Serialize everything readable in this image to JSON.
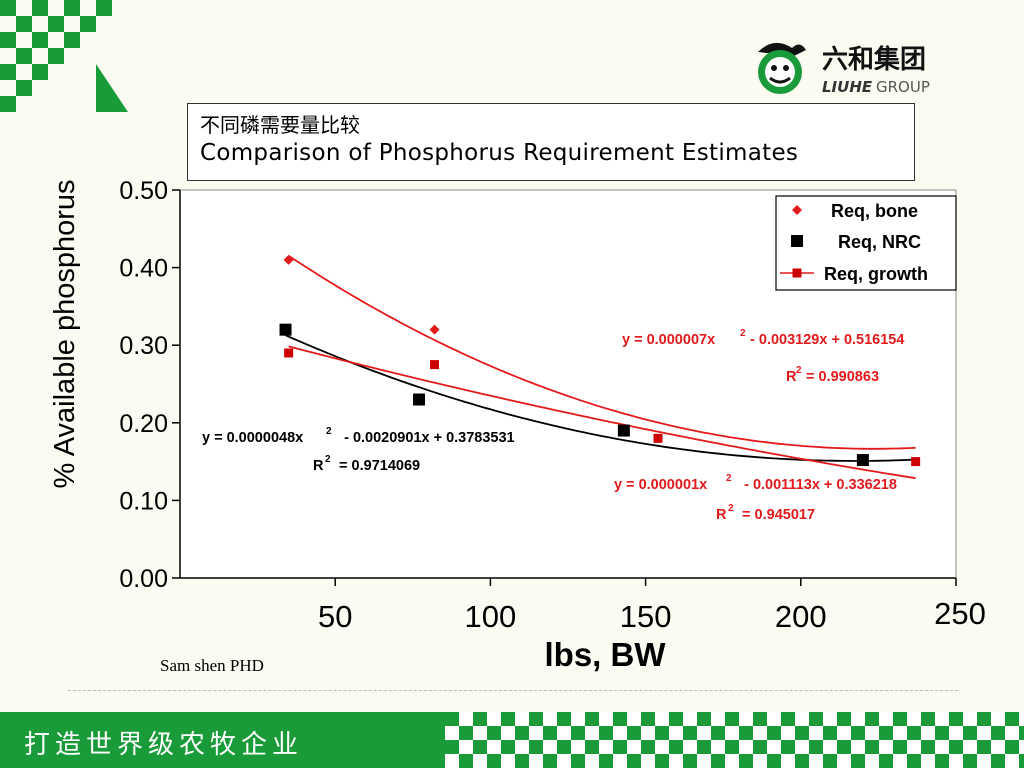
{
  "brand": {
    "name_cn": "六和集团",
    "name_en_bold": "LIUHE",
    "name_en_light": "GROUP",
    "green": "#1a9b3a",
    "logo_icon": "liuhe-face-logo"
  },
  "slide": {
    "title_cn": "不同磷需要量比较",
    "title_en": "Comparison of Phosphorus Requirement Estimates",
    "author": "Sam shen PHD",
    "footer_slogan": "打造世界级农牧企业"
  },
  "chart_data": {
    "type": "scatter",
    "xlabel": "lbs, BW",
    "ylabel": "% Available phosphorus",
    "xlim": [
      0,
      250
    ],
    "ylim": [
      0,
      0.5
    ],
    "x_ticks": [
      "50",
      "100",
      "150",
      "200",
      "250"
    ],
    "y_ticks": [
      "0.00",
      "0.10",
      "0.20",
      "0.30",
      "0.40",
      "0.50"
    ],
    "legend_position": "top-right",
    "series": [
      {
        "name": "Req, bone",
        "marker": "diamond",
        "color": "#e31a1c",
        "x": [
          35,
          82
        ],
        "y": [
          0.41,
          0.32
        ],
        "trend": {
          "a": 7e-06,
          "b": -0.003129,
          "c": 0.516154,
          "x_range": [
            35,
            237
          ]
        }
      },
      {
        "name": "Req, NRC",
        "marker": "square",
        "color": "#000000",
        "x": [
          34,
          77,
          143,
          220
        ],
        "y": [
          0.32,
          0.23,
          0.19,
          0.152
        ],
        "trend": {
          "a": 4.8e-06,
          "b": -0.0020901,
          "c": 0.3783531,
          "x_range": [
            34,
            237
          ]
        }
      },
      {
        "name": "Req, growth",
        "marker": "square-small",
        "color": "#cc0000",
        "x": [
          35,
          82,
          154,
          237
        ],
        "y": [
          0.29,
          0.275,
          0.18,
          0.15
        ],
        "trend": {
          "a": 1e-06,
          "b": -0.001113,
          "c": 0.336218,
          "x_range": [
            35,
            237
          ]
        }
      }
    ],
    "annotations": [
      {
        "id": "bone_eq",
        "eq_main": "y = 0.000007x",
        "eq_exp": "2",
        "eq_rest": " - 0.003129x + 0.516154",
        "r_label": "R",
        "r_exp": "2",
        "r_rest": " = 0.990863",
        "color": "#e31a1c"
      },
      {
        "id": "nrc_eq",
        "eq_main": "y = 0.0000048x",
        "eq_exp": "2",
        "eq_rest": "   - 0.0020901x + 0.3783531",
        "r_label": "R",
        "r_exp": "2",
        "r_rest": "  = 0.9714069",
        "color": "#000000"
      },
      {
        "id": "growth_eq",
        "eq_main": "y = 0.000001x",
        "eq_exp": "2",
        "eq_rest": "   - 0.001113x + 0.336218",
        "r_label": "R",
        "r_exp": "2",
        "r_rest": "  = 0.945017",
        "color": "#e31a1c"
      }
    ]
  }
}
